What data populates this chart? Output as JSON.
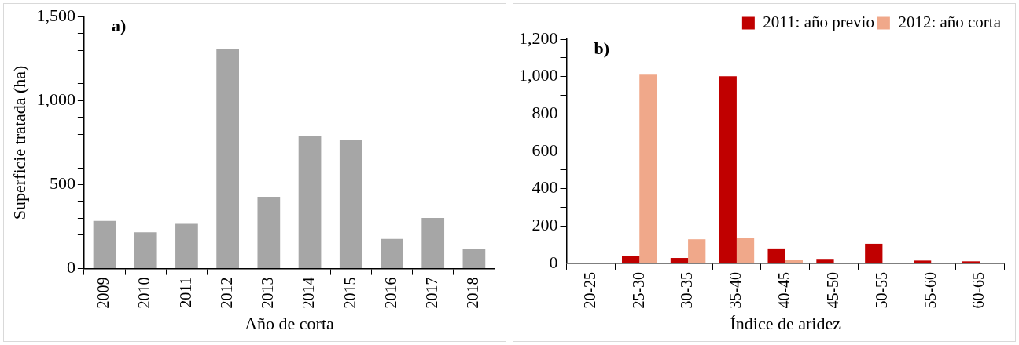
{
  "chart_data": [
    {
      "type": "bar",
      "xlabel": "Año de corta",
      "ylabel": "Superficie tratada (ha)",
      "annotations": [
        "a)"
      ],
      "categories": [
        "2009",
        "2010",
        "2011",
        "2012",
        "2013",
        "2014",
        "2015",
        "2016",
        "2017",
        "2018"
      ],
      "values": [
        284,
        216,
        266,
        1310,
        428,
        789,
        764,
        177,
        301,
        119
      ],
      "color": "#a6a6a6",
      "ylim": [
        0,
        1500
      ],
      "yticks": [
        0,
        {
          "value": 100,
          "label": null
        },
        {
          "value": 200,
          "label": null
        },
        {
          "value": 300,
          "label": null
        },
        {
          "value": 400,
          "label": null
        },
        {
          "value": 500,
          "label": "500"
        },
        {
          "value": 600,
          "label": null
        },
        {
          "value": 700,
          "label": null
        },
        {
          "value": 800,
          "label": null
        },
        {
          "value": 900,
          "label": null
        },
        {
          "value": 1000,
          "label": "1,000"
        },
        {
          "value": 1100,
          "label": null
        },
        {
          "value": 1200,
          "label": null
        },
        {
          "value": 1300,
          "label": null
        },
        {
          "value": 1400,
          "label": null
        },
        {
          "value": 1500,
          "label": "1,500"
        }
      ],
      "grid": false,
      "legend": false
    },
    {
      "type": "bar",
      "xlabel": "Índice de aridez",
      "annotations": [
        "b)"
      ],
      "categories": [
        "20-25",
        "25-30",
        "30-35",
        "35-40",
        "40-45",
        "45-50",
        "50-55",
        "55-60",
        "60-65"
      ],
      "series": [
        {
          "name": "2011: año previo",
          "color": "#c00000",
          "values": [
            0,
            40,
            29,
            1002,
            80,
            24,
            105,
            15,
            11
          ]
        },
        {
          "name": "2012: año corta",
          "color": "#f0a88a",
          "values": [
            0,
            1010,
            129,
            136,
            18,
            0,
            0,
            0,
            0
          ]
        }
      ],
      "ylim": [
        0,
        1200
      ],
      "yticks": [
        0,
        {
          "value": 100,
          "label": null
        },
        {
          "value": 200,
          "label": "200"
        },
        {
          "value": 300,
          "label": null
        },
        {
          "value": 400,
          "label": "400"
        },
        {
          "value": 500,
          "label": null
        },
        {
          "value": 600,
          "label": "600"
        },
        {
          "value": 700,
          "label": null
        },
        {
          "value": 800,
          "label": "800"
        },
        {
          "value": 900,
          "label": null
        },
        {
          "value": 1000,
          "label": "1,000"
        },
        {
          "value": 1100,
          "label": null
        },
        {
          "value": 1200,
          "label": "1,200"
        }
      ],
      "grid": false,
      "legend": "top right"
    }
  ]
}
